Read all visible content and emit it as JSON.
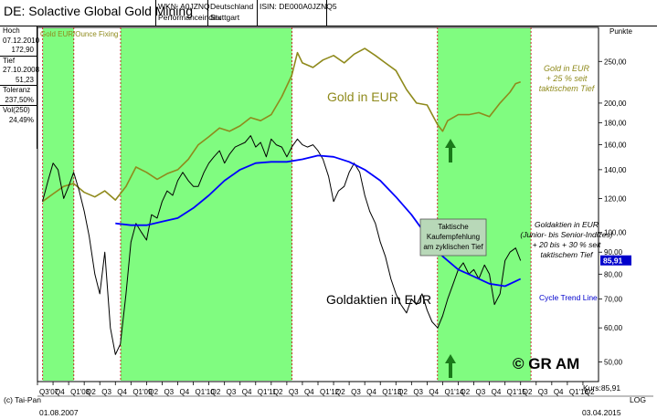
{
  "header": {
    "title": "DE: Solactive Global Gold Mining",
    "wkn_label": "WKN: A0JZNQ",
    "wkn_sub": "Performanceindex",
    "country": "Deutschland",
    "exchange": "Stuttgart",
    "isin_label": "ISIN: DE000A0JZNQ5"
  },
  "sidebar": [
    {
      "label": "Hoch",
      "values": [
        "07.12.2010",
        "172,90"
      ]
    },
    {
      "label": "Tief",
      "values": [
        "27.10.2008",
        "51,23"
      ]
    },
    {
      "label": "Toleranz",
      "values": [
        "237,50%"
      ]
    },
    {
      "label": "Vol(250)",
      "values": [
        "24,49%"
      ]
    }
  ],
  "footer": {
    "left_credit": "(c) Tai-Pan",
    "start_date": "01.08.2007",
    "end_date": "03.04.2015",
    "log_label": "LOG",
    "kurs_label": "Kurs:85,91"
  },
  "chart_data": {
    "type": "line",
    "legend_gold": "Gold EUR/Ounce Fixing",
    "yaxis_unit": "Punkte",
    "y_scale": "log",
    "ylim": [
      45,
      300
    ],
    "y_ticks": [
      50,
      60,
      70,
      80,
      90,
      100,
      120,
      140,
      160,
      180,
      200,
      250
    ],
    "y_tick_labels": [
      "50,00",
      "60,00",
      "70,00",
      "80,00",
      "90,00",
      "100,00",
      "120,00",
      "140,00",
      "160,00",
      "180,00",
      "200,00",
      "250,00"
    ],
    "current_value_label": "85,91",
    "current_value": 85.91,
    "x_tick_labels": [
      "Q3'07",
      "Q4",
      "Q1'08",
      "Q2",
      "Q3",
      "Q4",
      "Q1'09",
      "Q2",
      "Q3",
      "Q4",
      "Q1'10",
      "Q2",
      "Q3",
      "Q4",
      "Q1'11",
      "Q2",
      "Q3",
      "Q4",
      "Q1'12",
      "Q2",
      "Q3",
      "Q4",
      "Q1'13",
      "Q2",
      "Q3",
      "Q4",
      "Q1'14",
      "Q2",
      "Q3",
      "Q4",
      "Q1'15",
      "Q2",
      "Q3",
      "Q4",
      "Q1'16",
      "Q2"
    ],
    "annotations": {
      "gold_label": "Gold in EUR",
      "gold_note": [
        "Gold in EUR",
        "+ 25 % seit",
        "taktischem Tief"
      ],
      "recommend_box": [
        "Taktische",
        "Kaufempfehlung",
        "am zyklischen Tief"
      ],
      "miners_note": [
        "Goldaktien in EUR",
        "(Junior- bis Senior-Indizes)",
        "+ 20 bis + 30 % seit",
        "taktischem Tief"
      ],
      "miners_label": "Goldaktien in EUR",
      "trend_label": "Cycle Trend Line",
      "copyright": "© GR AM"
    },
    "shaded_periods": [
      {
        "from": "2007-08",
        "to": "2008-02"
      },
      {
        "from": "2008-11",
        "to": "2011-08"
      },
      {
        "from": "2013-12",
        "to": "2015-06"
      }
    ],
    "colors": {
      "shade": "#80fc80",
      "gold": "#8f8a1c",
      "miners": "#000000",
      "trend": "#0000ff",
      "arrow": "#1a7a1a",
      "label_box": "#b8d8b8"
    },
    "series": [
      {
        "name": "Gold EUR/Ounce Fixing",
        "x": [
          2007.58,
          2007.75,
          2007.92,
          2008.08,
          2008.25,
          2008.42,
          2008.58,
          2008.75,
          2008.92,
          2009.08,
          2009.25,
          2009.42,
          2009.58,
          2009.75,
          2009.92,
          2010.08,
          2010.25,
          2010.42,
          2010.58,
          2010.75,
          2010.92,
          2011.08,
          2011.25,
          2011.42,
          2011.58,
          2011.67,
          2011.75,
          2011.92,
          2012.08,
          2012.25,
          2012.42,
          2012.58,
          2012.75,
          2012.92,
          2013.08,
          2013.25,
          2013.42,
          2013.58,
          2013.75,
          2013.92,
          2014.0,
          2014.08,
          2014.25,
          2014.42,
          2014.58,
          2014.75,
          2014.92,
          2015.08,
          2015.17,
          2015.25
        ],
        "y": [
          118,
          123,
          128,
          130,
          124,
          121,
          125,
          119,
          128,
          142,
          138,
          133,
          137,
          140,
          148,
          160,
          167,
          175,
          172,
          177,
          185,
          182,
          188,
          207,
          232,
          262,
          248,
          242,
          252,
          258,
          248,
          260,
          268,
          258,
          248,
          238,
          215,
          200,
          198,
          178,
          172,
          182,
          188,
          188,
          190,
          186,
          200,
          212,
          222,
          224
        ]
      },
      {
        "name": "Goldaktien in EUR",
        "x": [
          2007.58,
          2007.67,
          2007.75,
          2007.83,
          2007.92,
          2008.0,
          2008.08,
          2008.17,
          2008.25,
          2008.33,
          2008.42,
          2008.5,
          2008.58,
          2008.67,
          2008.75,
          2008.83,
          2008.92,
          2009.0,
          2009.08,
          2009.17,
          2009.25,
          2009.33,
          2009.42,
          2009.5,
          2009.58,
          2009.67,
          2009.75,
          2009.83,
          2009.92,
          2010.0,
          2010.08,
          2010.17,
          2010.25,
          2010.33,
          2010.42,
          2010.5,
          2010.58,
          2010.67,
          2010.75,
          2010.83,
          2010.92,
          2011.0,
          2011.08,
          2011.17,
          2011.25,
          2011.33,
          2011.42,
          2011.5,
          2011.58,
          2011.67,
          2011.75,
          2011.83,
          2011.92,
          2012.0,
          2012.08,
          2012.17,
          2012.25,
          2012.33,
          2012.42,
          2012.5,
          2012.58,
          2012.67,
          2012.75,
          2012.83,
          2012.92,
          2013.0,
          2013.08,
          2013.17,
          2013.25,
          2013.33,
          2013.42,
          2013.5,
          2013.58,
          2013.67,
          2013.75,
          2013.83,
          2013.92,
          2014.0,
          2014.08,
          2014.17,
          2014.25,
          2014.33,
          2014.42,
          2014.5,
          2014.58,
          2014.67,
          2014.75,
          2014.83,
          2014.92,
          2015.0,
          2015.08,
          2015.17,
          2015.25
        ],
        "y": [
          118,
          132,
          145,
          140,
          120,
          128,
          138,
          125,
          112,
          98,
          80,
          72,
          90,
          60,
          52,
          55,
          72,
          95,
          105,
          100,
          96,
          110,
          108,
          118,
          125,
          122,
          132,
          138,
          132,
          128,
          128,
          138,
          145,
          150,
          155,
          145,
          152,
          158,
          160,
          162,
          168,
          158,
          162,
          150,
          165,
          160,
          158,
          150,
          158,
          165,
          160,
          158,
          160,
          155,
          148,
          135,
          118,
          125,
          128,
          138,
          145,
          138,
          122,
          112,
          105,
          95,
          88,
          78,
          72,
          68,
          65,
          70,
          68,
          72,
          66,
          62,
          60,
          64,
          70,
          76,
          82,
          85,
          80,
          82,
          78,
          84,
          80,
          68,
          72,
          86,
          90,
          92,
          86
        ]
      },
      {
        "name": "Cycle Trend Line",
        "x": [
          2008.75,
          2009.0,
          2009.25,
          2009.5,
          2009.75,
          2010.0,
          2010.25,
          2010.5,
          2010.75,
          2011.0,
          2011.25,
          2011.5,
          2011.75,
          2012.0,
          2012.25,
          2012.5,
          2012.75,
          2013.0,
          2013.25,
          2013.5,
          2013.75,
          2014.0,
          2014.25,
          2014.5,
          2014.75,
          2015.0,
          2015.17,
          2015.25
        ],
        "y": [
          105,
          104,
          104,
          106,
          108,
          114,
          122,
          132,
          140,
          145,
          146,
          146,
          148,
          151,
          150,
          146,
          140,
          132,
          121,
          110,
          98,
          88,
          82,
          79,
          76,
          75,
          77,
          78
        ]
      }
    ]
  }
}
